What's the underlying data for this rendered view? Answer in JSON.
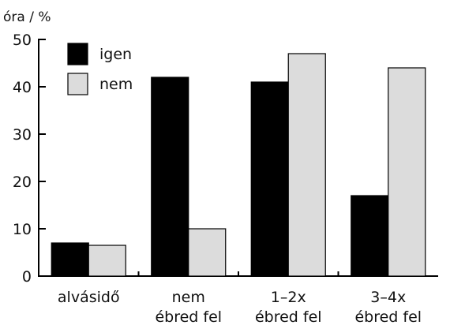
{
  "chart_data": {
    "type": "bar",
    "ylabel": "óra / %",
    "ylim": [
      0,
      50
    ],
    "yticks": [
      0,
      10,
      20,
      30,
      40,
      50
    ],
    "categories": [
      [
        "alvásidő"
      ],
      [
        "nem",
        "ébred fel"
      ],
      [
        "1–2x",
        "ébred fel"
      ],
      [
        "3–4x",
        "ébred fel"
      ]
    ],
    "series": [
      {
        "name": "igen",
        "color": "#000000",
        "values": [
          7,
          42,
          41,
          17
        ]
      },
      {
        "name": "nem",
        "color": "#dcdcdc",
        "values": [
          6.5,
          10,
          47,
          44
        ]
      }
    ],
    "legend_position": "top-left",
    "grid": false
  }
}
